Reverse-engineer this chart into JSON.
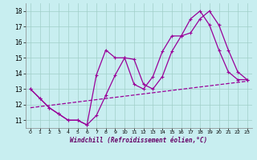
{
  "xlabel": "Windchill (Refroidissement éolien,°C)",
  "xlim": [
    -0.5,
    23.5
  ],
  "ylim": [
    10.5,
    18.5
  ],
  "yticks": [
    11,
    12,
    13,
    14,
    15,
    16,
    17,
    18
  ],
  "xticks": [
    0,
    1,
    2,
    3,
    4,
    5,
    6,
    7,
    8,
    9,
    10,
    11,
    12,
    13,
    14,
    15,
    16,
    17,
    18,
    19,
    20,
    21,
    22,
    23
  ],
  "bg_color": "#c8eef0",
  "grid_color": "#a0cfc8",
  "line_color": "#990099",
  "curve1_x": [
    0,
    1,
    2,
    3,
    4,
    5,
    6,
    7,
    8,
    9,
    10,
    11,
    12,
    13,
    14,
    15,
    16,
    17,
    18,
    19,
    20,
    21,
    22,
    23
  ],
  "curve1_y": [
    13.0,
    12.4,
    11.8,
    11.4,
    11.0,
    11.0,
    10.7,
    11.3,
    12.6,
    13.9,
    15.0,
    14.9,
    13.3,
    13.0,
    13.8,
    15.4,
    16.4,
    16.6,
    17.5,
    18.0,
    17.1,
    15.5,
    14.1,
    13.6
  ],
  "curve2_x": [
    0,
    1,
    2,
    3,
    4,
    5,
    6,
    7,
    8,
    9,
    10,
    11,
    12,
    13,
    14,
    15,
    16,
    17,
    18,
    19,
    20,
    21,
    22,
    23
  ],
  "curve2_y": [
    13.0,
    12.4,
    11.8,
    11.4,
    11.0,
    11.0,
    10.7,
    13.9,
    15.5,
    15.0,
    15.0,
    13.3,
    13.0,
    13.8,
    15.4,
    16.4,
    16.4,
    17.5,
    18.0,
    17.1,
    15.5,
    14.1,
    13.6,
    13.6
  ],
  "curve3_x": [
    0,
    23
  ],
  "curve3_y": [
    11.8,
    13.5
  ]
}
